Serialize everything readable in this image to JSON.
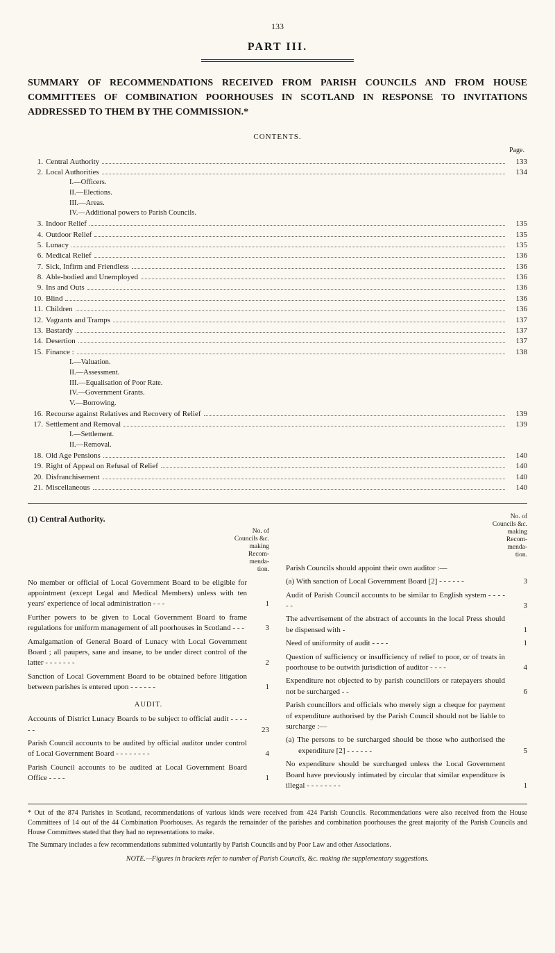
{
  "page_number": "133",
  "part_title": "PART III.",
  "main_heading": "SUMMARY OF RECOMMENDATIONS RECEIVED FROM PARISH COUNCILS AND FROM HOUSE COMMITTEES OF COMBINATION POORHOUSES IN SCOTLAND IN RESPONSE TO INVITATIONS ADDRESSED TO THEM BY THE COMMISSION.*",
  "contents_label": "CONTENTS.",
  "page_label": "Page.",
  "toc": [
    {
      "num": "1.",
      "label": "Central Authority",
      "page": "133"
    },
    {
      "num": "2.",
      "label": "Local Authorities",
      "page": "134",
      "subs": [
        "I.—Officers.",
        "II.—Elections.",
        "III.—Areas.",
        "IV.—Additional powers to Parish Councils."
      ]
    },
    {
      "num": "3.",
      "label": "Indoor Relief",
      "page": "135"
    },
    {
      "num": "4.",
      "label": "Outdoor Relief",
      "page": "135"
    },
    {
      "num": "5.",
      "label": "Lunacy",
      "page": "135"
    },
    {
      "num": "6.",
      "label": "Medical Relief",
      "page": "136"
    },
    {
      "num": "7.",
      "label": "Sick, Infirm and Friendless",
      "page": "136"
    },
    {
      "num": "8.",
      "label": "Able-bodied and Unemployed",
      "page": "136"
    },
    {
      "num": "9.",
      "label": "Ins and Outs",
      "page": "136"
    },
    {
      "num": "10.",
      "label": "Blind",
      "page": "136"
    },
    {
      "num": "11.",
      "label": "Children",
      "page": "136"
    },
    {
      "num": "12.",
      "label": "Vagrants and Tramps",
      "page": "137"
    },
    {
      "num": "13.",
      "label": "Bastardy",
      "page": "137"
    },
    {
      "num": "14.",
      "label": "Desertion",
      "page": "137"
    },
    {
      "num": "15.",
      "label": "Finance :",
      "page": "138",
      "subs": [
        "I.—Valuation.",
        "II.—Assessment.",
        "III.—Equalisation of Poor Rate.",
        "IV.—Government Grants.",
        "V.—Borrowing."
      ]
    },
    {
      "num": "16.",
      "label": "Recourse against Relatives and Recovery of Relief",
      "page": "139"
    },
    {
      "num": "17.",
      "label": "Settlement and Removal",
      "page": "139",
      "subs": [
        "I.—Settlement.",
        "II.—Removal."
      ]
    },
    {
      "num": "18.",
      "label": "Old Age Pensions",
      "page": "140"
    },
    {
      "num": "19.",
      "label": "Right of Appeal on Refusal of Relief",
      "page": "140"
    },
    {
      "num": "20.",
      "label": "Disfranchisement",
      "page": "140"
    },
    {
      "num": "21.",
      "label": "Miscellaneous",
      "page": "140"
    }
  ],
  "left_col": {
    "title": "(1) Central Authority.",
    "count_header": "No. of\nCouncils &c.\nmaking\nRecom-\nmenda-\ntion.",
    "items": [
      {
        "text": "No member or official of Local Government Board to be eligible for appointment (except Legal and Medical Members) unless with ten years' experience of local administration   -   -   -",
        "count": "1"
      },
      {
        "text": "Further powers to be given to Local Government Board to frame regulations for uniform manage­ment of all poorhouses in Scotland -   -   -",
        "count": "3"
      },
      {
        "text": "Amalgamation of General Board of Lunacy with Local Government Board ; all paupers, sane and insane, to be under direct control of the latter   -   -   -   -   -   -   -",
        "count": "2"
      },
      {
        "text": "Sanction of Local Government Board to be obtained before litigation between parishes is entered upon   -   -   -   -   -   -",
        "count": "1"
      }
    ],
    "audit_label": "AUDIT.",
    "audit_items": [
      {
        "text": "Accounts of District Lunacy Boards to be subject to official audit   -   -   -   -   -   -",
        "count": "23"
      },
      {
        "text": "Parish Council accounts to be audited by official auditor under control of Local Government Board   -   -   -   -   -   -   -   -",
        "count": "4"
      },
      {
        "text": "Parish Council accounts to be audited at Local Government Board Office   -   -   -   -",
        "count": "1"
      }
    ]
  },
  "right_col": {
    "count_header": "No. of\nCouncils &c.\nmaking\nRecom-\nmenda-\ntion.",
    "items": [
      {
        "text": "Parish Councils should appoint their own auditor :—",
        "count": ""
      },
      {
        "text": "(a) With sanction of Local Government Board [2] -   -   -   -   -   -",
        "count": "3",
        "sub": true
      },
      {
        "text": "Audit of Parish Council accounts to be similar to English system   -   -   -   -   -   -",
        "count": "3"
      },
      {
        "text": "The advertisement of the abstract of accounts in the local Press should be dispensed with  -",
        "count": "1"
      },
      {
        "text": "Need of uniformity of audit   -   -   -   -",
        "count": "1"
      },
      {
        "text": "Question of sufficiency or insufficiency of relief to poor, or of treats in poorhouse to be out­with jurisdiction of auditor  -   -   -   -",
        "count": "4"
      },
      {
        "text": "Expenditure not objected to by parish councillors or ratepayers should not be surcharged  -   -",
        "count": "6"
      },
      {
        "text": "Parish councillors and officials who merely sign a cheque for payment of expenditure authorised by the Parish Council should not be liable to surcharge :—",
        "count": ""
      },
      {
        "text": "(a) The persons to be surcharged should be those who authorised the expendi­ture [2]   -   -   -   -   -   -",
        "count": "5",
        "sub": true
      },
      {
        "text": "No expenditure should be surcharged unless the Local Government Board have previously intimated by circular that similar expenditure is illegal -   -   -   -   -   -   -   -",
        "count": "1"
      }
    ]
  },
  "footnotes": [
    "* Out of the 874 Parishes in Scotland, recommendations of various kinds were received from 424 Parish Councils. Recom­mendations were also received from the House Committees of 14 out of the 44 Combination Poorhouses. As regards the re­mainder of the parishes and combination poorhouses the great majority of the Parish Councils and House Committees stated that they had no representations to make.",
    "The Summary includes a few recommendations submitted voluntarily by Parish Councils and by Poor Law and other Associations."
  ],
  "footnote_italic": "NOTE.—Figures in brackets refer to number of Parish Councils, &c. making the supplementary suggestions."
}
